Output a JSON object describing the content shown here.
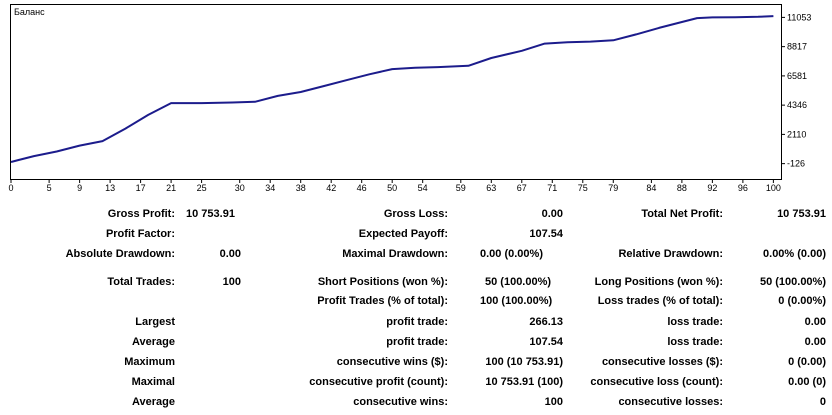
{
  "chart_data": {
    "type": "line",
    "title": "Баланс",
    "xlabel": "",
    "ylabel": "",
    "x_ticks": [
      0,
      5,
      9,
      13,
      17,
      21,
      25,
      30,
      34,
      38,
      42,
      46,
      50,
      54,
      59,
      63,
      67,
      71,
      75,
      79,
      84,
      88,
      92,
      96,
      100
    ],
    "y_ticks": [
      -126,
      2110,
      4346,
      6581,
      8817,
      11053
    ],
    "xlim": [
      0,
      101
    ],
    "ylim": [
      -1300,
      12000
    ],
    "grid": false,
    "line_color": "#1c1c8c",
    "series": [
      {
        "name": "",
        "x": [
          0,
          1,
          3,
          6,
          9,
          12,
          15,
          18,
          21,
          25,
          29,
          32,
          35,
          38,
          41,
          44,
          47,
          50,
          53,
          56,
          60,
          63,
          67,
          70,
          73,
          76,
          79,
          82,
          85,
          88,
          90,
          92,
          95,
          98,
          100
        ],
        "y": [
          0,
          150,
          450,
          800,
          1250,
          1600,
          2550,
          3600,
          4500,
          4500,
          4550,
          4600,
          5050,
          5350,
          5800,
          6250,
          6700,
          7100,
          7200,
          7250,
          7350,
          7950,
          8500,
          9050,
          9150,
          9200,
          9300,
          9750,
          10250,
          10700,
          11000,
          11050,
          11070,
          11100,
          11150
        ]
      }
    ]
  },
  "stats": {
    "gross_profit": {
      "label": "Gross Profit:",
      "value": "10 753.91"
    },
    "gross_loss": {
      "label": "Gross Loss:",
      "value": "0.00"
    },
    "total_net_profit": {
      "label": "Total Net Profit:",
      "value": "10 753.91"
    },
    "profit_factor": {
      "label": "Profit Factor:",
      "value": ""
    },
    "expected_payoff": {
      "label": "Expected Payoff:",
      "value": "107.54"
    },
    "absolute_drawdown": {
      "label": "Absolute Drawdown:",
      "value": "0.00"
    },
    "maximal_drawdown": {
      "label": "Maximal Drawdown:",
      "value": "0.00 (0.00%)"
    },
    "relative_drawdown": {
      "label": "Relative Drawdown:",
      "value": "0.00% (0.00)"
    },
    "total_trades": {
      "label": "Total Trades:",
      "value": "100"
    },
    "short_positions": {
      "label": "Short Positions (won %):",
      "value": "50 (100.00%)"
    },
    "long_positions": {
      "label": "Long Positions (won %):",
      "value": "50 (100.00%)"
    },
    "profit_trades": {
      "label": "Profit Trades (% of total):",
      "value": "100 (100.00%)"
    },
    "loss_trades": {
      "label": "Loss trades (% of total):",
      "value": "0 (0.00%)"
    },
    "largest": {
      "label": "Largest",
      "profit_label": "profit trade:",
      "profit_value": "266.13",
      "loss_label": "loss trade:",
      "loss_value": "0.00"
    },
    "average": {
      "label": "Average",
      "profit_label": "profit trade:",
      "profit_value": "107.54",
      "loss_label": "loss trade:",
      "loss_value": "0.00"
    },
    "maximum": {
      "label": "Maximum",
      "wins_label": "consecutive wins ($):",
      "wins_value": "100 (10 753.91)",
      "losses_label": "consecutive losses ($):",
      "losses_value": "0 (0.00)"
    },
    "maximal": {
      "label": "Maximal",
      "profit_label": "consecutive profit (count):",
      "profit_value": "10 753.91 (100)",
      "loss_label": "consecutive loss (count):",
      "loss_value": "0.00 (0)"
    },
    "average2": {
      "label": "Average",
      "wins_label": "consecutive wins:",
      "wins_value": "100",
      "losses_label": "consecutive losses:",
      "losses_value": "0"
    }
  }
}
